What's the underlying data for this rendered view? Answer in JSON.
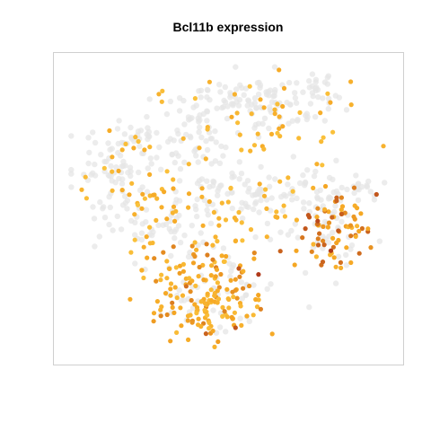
{
  "chart_data": {
    "type": "scatter",
    "title": "Bcl11b expression",
    "xlabel": "",
    "ylabel": "",
    "grid": false,
    "legend": "none",
    "colors": {
      "background_cells": "#e6e6e6",
      "low": "#fdd049",
      "mid": "#f5a623",
      "high": "#b03a1a"
    },
    "xlim": [
      0,
      100
    ],
    "ylim": [
      0,
      100
    ],
    "note_values": "x/y are tSNE-style embedding coordinates (no axes printed); expression levels are relative (0 = not expressed)",
    "cluster_centers": [
      {
        "x": 12,
        "y": 65,
        "spread": [
          6,
          5
        ],
        "n": 40
      },
      {
        "x": 26,
        "y": 72,
        "spread": [
          8,
          6
        ],
        "n": 55
      },
      {
        "x": 38,
        "y": 80,
        "spread": [
          6,
          5
        ],
        "n": 30
      },
      {
        "x": 52,
        "y": 88,
        "spread": [
          7,
          4
        ],
        "n": 45
      },
      {
        "x": 65,
        "y": 85,
        "spread": [
          8,
          5
        ],
        "n": 50
      },
      {
        "x": 77,
        "y": 88,
        "spread": [
          6,
          4
        ],
        "n": 30
      },
      {
        "x": 47,
        "y": 62,
        "spread": [
          5,
          7
        ],
        "n": 40
      },
      {
        "x": 58,
        "y": 55,
        "spread": [
          7,
          6
        ],
        "n": 40
      },
      {
        "x": 73,
        "y": 52,
        "spread": [
          7,
          6
        ],
        "n": 35
      },
      {
        "x": 88,
        "y": 58,
        "spread": [
          5,
          3
        ],
        "n": 25
      },
      {
        "x": 20,
        "y": 48,
        "spread": [
          7,
          6
        ],
        "n": 35
      },
      {
        "x": 34,
        "y": 45,
        "spread": [
          6,
          6
        ],
        "n": 30
      },
      {
        "x": 45,
        "y": 25,
        "spread": [
          10,
          9
        ],
        "n": 60
      },
      {
        "x": 80,
        "y": 40,
        "spread": [
          6,
          7
        ],
        "n": 35
      }
    ],
    "expressed_groups": [
      {
        "x": 44,
        "y": 22,
        "spread": [
          9,
          9
        ],
        "n": 170,
        "level": [
          0.25,
          0.75
        ]
      },
      {
        "x": 82,
        "y": 42,
        "spread": [
          5,
          7
        ],
        "n": 75,
        "level": [
          0.35,
          0.9
        ]
      },
      {
        "x": 25,
        "y": 55,
        "spread": [
          10,
          12
        ],
        "n": 60,
        "level": [
          0.2,
          0.55
        ]
      },
      {
        "x": 62,
        "y": 78,
        "spread": [
          12,
          10
        ],
        "n": 45,
        "level": [
          0.2,
          0.55
        ]
      },
      {
        "x": 55,
        "y": 50,
        "spread": [
          8,
          8
        ],
        "n": 30,
        "level": [
          0.2,
          0.5
        ]
      }
    ],
    "high_points": [
      {
        "x": 59,
        "y": 28,
        "level": 1.0
      },
      {
        "x": 53,
        "y": 30,
        "level": 0.9
      },
      {
        "x": 77,
        "y": 46,
        "level": 0.95
      },
      {
        "x": 81,
        "y": 36,
        "level": 1.0
      },
      {
        "x": 79,
        "y": 38,
        "level": 0.85
      },
      {
        "x": 52,
        "y": 10,
        "level": 0.9
      },
      {
        "x": 37,
        "y": 24,
        "level": 0.8
      },
      {
        "x": 43,
        "y": 8,
        "level": 0.85
      },
      {
        "x": 84,
        "y": 32,
        "level": 0.8
      }
    ]
  }
}
